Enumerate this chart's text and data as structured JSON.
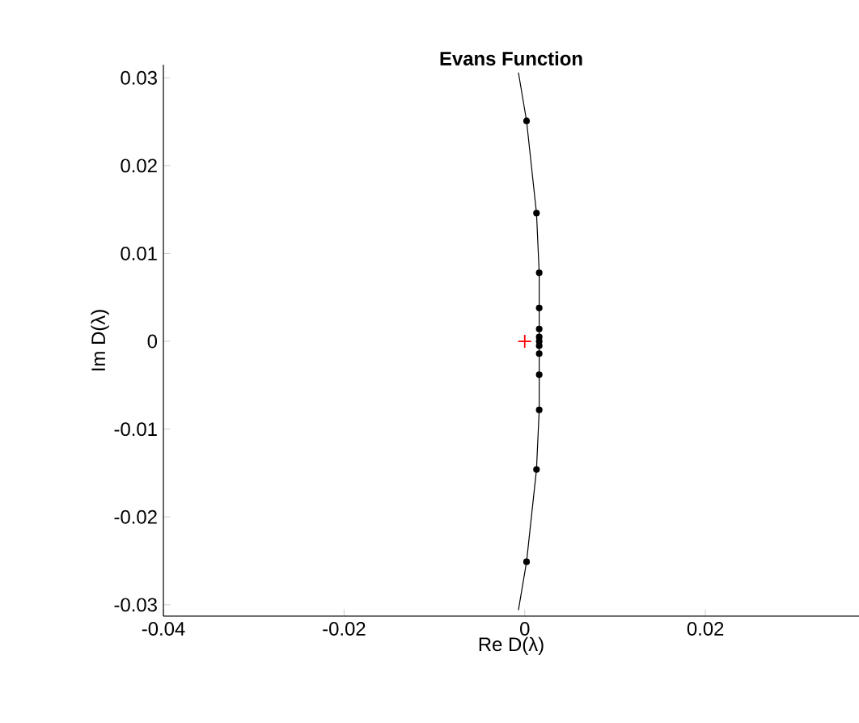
{
  "chart_data": {
    "type": "line",
    "title": "Evans Function",
    "xlabel": "Re D(λ)",
    "ylabel": "Im D(λ)",
    "xlim": [
      -0.04,
      0.037
    ],
    "ylim": [
      -0.0313,
      0.0315
    ],
    "xticks": [
      -0.04,
      -0.02,
      0,
      0.02
    ],
    "yticks": [
      -0.03,
      -0.02,
      -0.01,
      0,
      0.01,
      0.02,
      0.03
    ],
    "grid": false,
    "series": [
      {
        "color": "#000000",
        "marker": "none",
        "x": [
          -0.0007,
          0.0002,
          0.0013,
          0.0016,
          0.0016,
          0.0016,
          0.0016,
          0.0016,
          0.0016,
          0.0016,
          0.0016,
          0.0016,
          0.0013,
          0.0002,
          -0.0007
        ],
        "values": [
          0.0306,
          0.0251,
          0.0146,
          0.0078,
          0.0038,
          0.0014,
          0.0005,
          0,
          -0.0005,
          -0.0014,
          -0.0038,
          -0.0078,
          -0.0146,
          -0.0251,
          -0.0306
        ]
      },
      {
        "type": "scatter",
        "color": "#000000",
        "marker": "circle",
        "x": [
          0.0002,
          0.0013,
          0.0016,
          0.0016,
          0.0016,
          0.0016,
          0.0016,
          0.0016,
          0.0016,
          0.0016,
          0.0016,
          0.0013,
          0.0002
        ],
        "values": [
          0.0251,
          0.0146,
          0.0078,
          0.0038,
          0.0014,
          0.0005,
          0,
          -0.0005,
          -0.0014,
          -0.0038,
          -0.0078,
          -0.0146,
          -0.0251
        ]
      },
      {
        "type": "scatter",
        "color": "#ff0000",
        "marker": "cross",
        "x": [
          0
        ],
        "values": [
          0
        ]
      }
    ]
  }
}
